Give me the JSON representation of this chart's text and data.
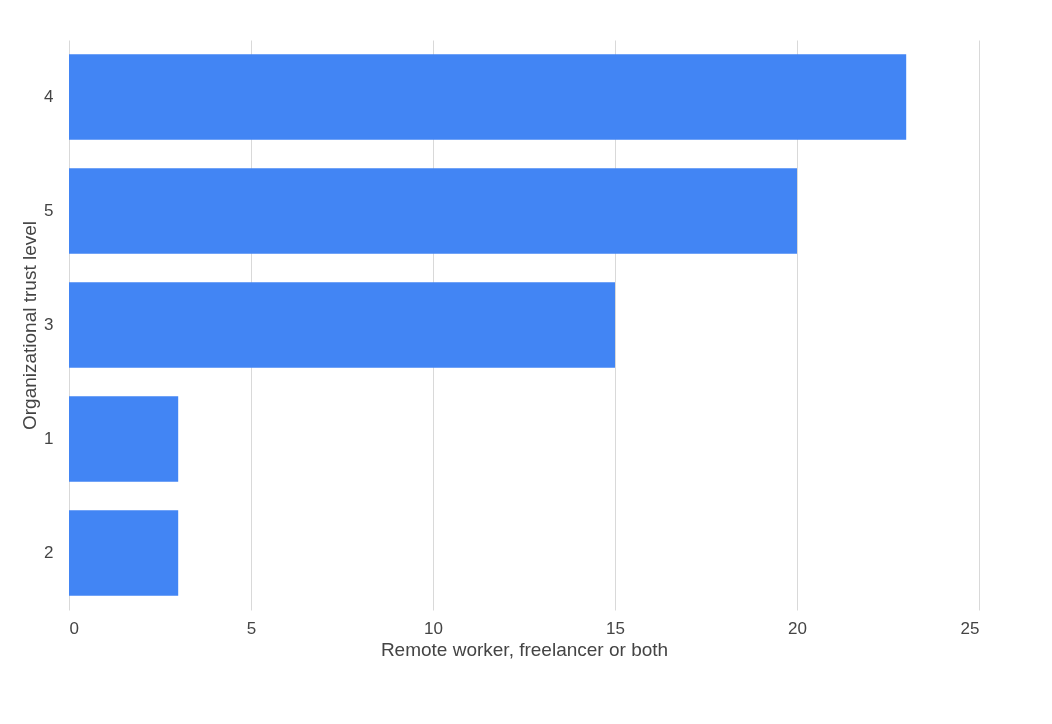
{
  "chart_data": {
    "type": "bar",
    "orientation": "horizontal",
    "categories": [
      "4",
      "5",
      "3",
      "1",
      "2"
    ],
    "values": [
      23,
      20,
      15,
      3,
      3
    ],
    "color": "#4285f4",
    "xlabel": "Remote worker, freelancer or both",
    "ylabel": "Organizational trust level",
    "xlim": [
      0,
      25
    ],
    "xticks": [
      0,
      5,
      10,
      15,
      20,
      25
    ],
    "grid": "x"
  }
}
